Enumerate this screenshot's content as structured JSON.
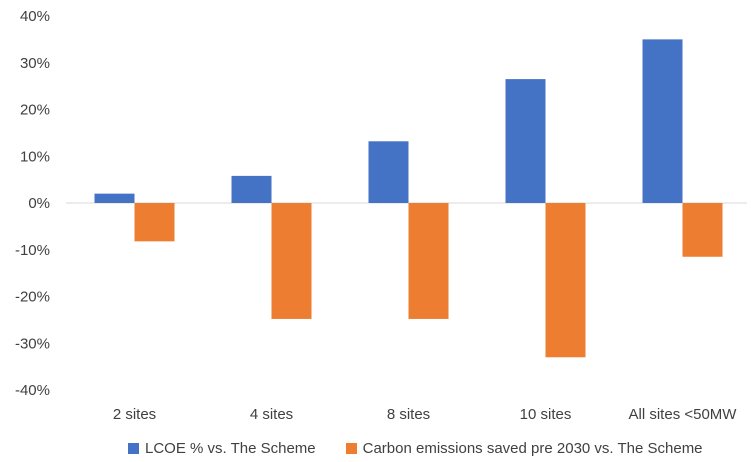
{
  "chart_data": {
    "type": "bar",
    "categories": [
      "2 sites",
      "4 sites",
      "8 sites",
      "10 sites",
      "All sites <50MW"
    ],
    "series": [
      {
        "name": "LCOE % vs. The Scheme",
        "color": "#4472C4",
        "values": [
          2,
          5.8,
          13.2,
          26.5,
          35
        ]
      },
      {
        "name": "Carbon emissions saved pre 2030 vs. The Scheme",
        "color": "#ED7D31",
        "values": [
          -8.2,
          -24.8,
          -24.8,
          -33,
          -11.5
        ]
      }
    ],
    "ylim": [
      -40,
      40
    ],
    "yticks": [
      -40,
      -30,
      -20,
      -10,
      0,
      10,
      20,
      30,
      40
    ],
    "ytick_labels": [
      "-40%",
      "-30%",
      "-20%",
      "-10%",
      "0%",
      "10%",
      "20%",
      "30%",
      "40%"
    ],
    "grid": false,
    "legend": "bottom",
    "title": "",
    "xlabel": "",
    "ylabel": ""
  }
}
